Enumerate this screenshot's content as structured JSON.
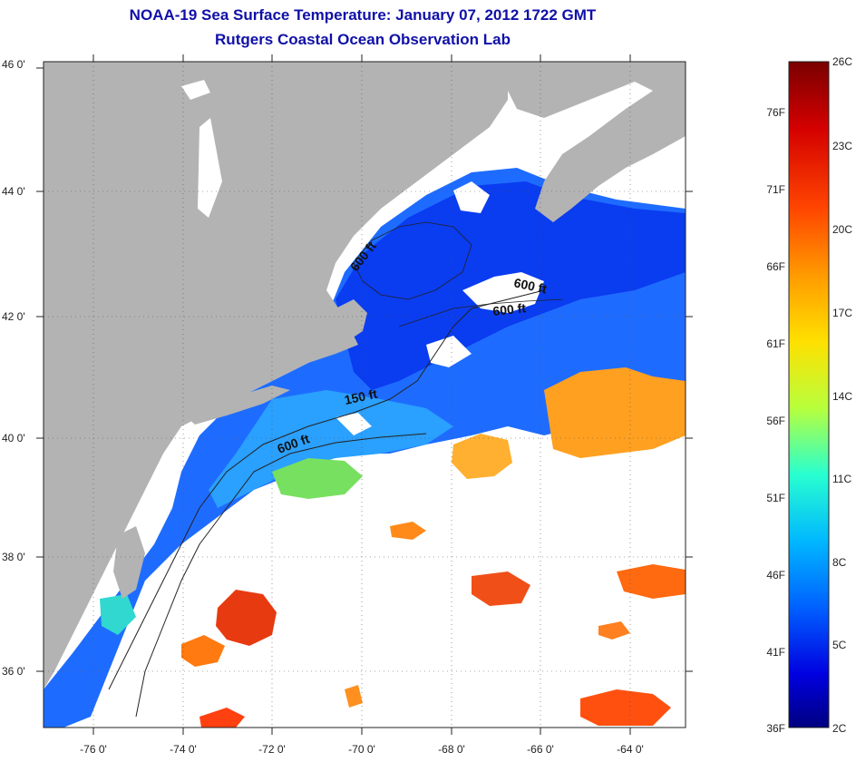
{
  "title": "NOAA-19 Sea Surface Temperature:  January 07, 2012 1722 GMT",
  "subtitle": "Rutgers Coastal Ocean Observation Lab",
  "axes": {
    "lat_labels": [
      "46 0'",
      "44 0'",
      "42 0'",
      "40 0'",
      "38 0'",
      "36 0'"
    ],
    "lon_labels": [
      "-76 0'",
      "-74 0'",
      "-72 0'",
      "-70 0'",
      "-68 0'",
      "-66 0'",
      "-64 0'"
    ]
  },
  "contour_labels": [
    "600 ft",
    "600 ft",
    "600 ft",
    "150 ft",
    "600 ft"
  ],
  "colorbar": {
    "celsius": [
      "26C",
      "23C",
      "20C",
      "17C",
      "14C",
      "11C",
      "8C",
      "5C",
      "2C"
    ],
    "fahrenheit": [
      "76F",
      "71F",
      "66F",
      "61F",
      "56F",
      "51F",
      "46F",
      "41F",
      "36F"
    ],
    "gradient": [
      "#7a0000",
      "#d40000",
      "#ff4500",
      "#ff9a00",
      "#ffe000",
      "#b8ff3c",
      "#28ffd0",
      "#00b8ff",
      "#0060ff",
      "#0000e0",
      "#000080"
    ]
  },
  "colors": {
    "land": "#b3b3b3",
    "water_cold": "#1040f0",
    "water_cool": "#1e78ff",
    "water_mid": "#28b4ff",
    "water_warm": "#ff9a1a",
    "cloud": "#ffffff",
    "title": "#1010a8"
  }
}
